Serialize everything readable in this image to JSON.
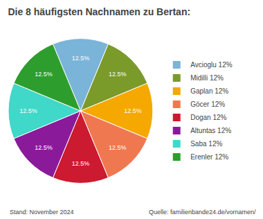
{
  "chart_data": {
    "type": "pie",
    "title": "Die 8 häufigsten Nachnamen zu Bertan:",
    "categories": [
      "Avcioglu 12%",
      "Midilli 12%",
      "Gaplan 12%",
      "Göcer 12%",
      "Dogan 12%",
      "Altuntas 12%",
      "Saba 12%",
      "Erenler 12%"
    ],
    "values": [
      12.5,
      12.5,
      12.5,
      12.5,
      12.5,
      12.5,
      12.5,
      12.5
    ],
    "value_labels": [
      "12.5%",
      "12.5%",
      "12.5%",
      "12.5%",
      "12.5%",
      "12.5%",
      "12.5%",
      "12.5%"
    ],
    "data_labels": true,
    "colors": [
      "#7ab4d8",
      "#7a9a2a",
      "#f5a800",
      "#f07850",
      "#cc1a30",
      "#8b1a9b",
      "#40d8c8",
      "#2d9e2d"
    ],
    "legend": "right",
    "annotations": [
      "Stand: November 2024",
      "Quelle: familienbande24.de/vornamen/"
    ]
  }
}
